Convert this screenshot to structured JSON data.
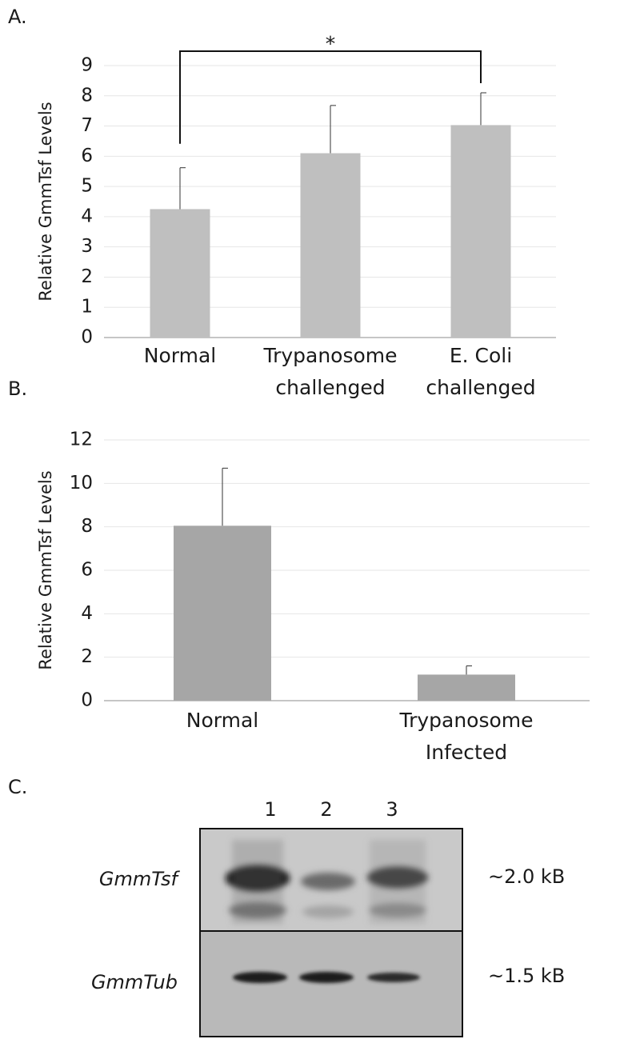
{
  "chart_data": [
    {
      "type": "bar",
      "panel_label": "A.",
      "ylabel": "Relative GmmTsf Levels",
      "categories": [
        "Normal",
        "Trypanosome challenged",
        "E. Coli challenged"
      ],
      "values": [
        4.25,
        6.1,
        7.03
      ],
      "errors": [
        1.37,
        1.58,
        1.07
      ],
      "color": "#bfbfbf",
      "ylim": [
        0,
        9
      ],
      "yticks": [
        0,
        1,
        2,
        3,
        4,
        5,
        6,
        7,
        8,
        9
      ],
      "grid": true,
      "annotation": "*"
    },
    {
      "type": "bar",
      "panel_label": "B.",
      "ylabel": "Relative GmmTsf Levels",
      "categories": [
        "Normal",
        "Trypanosome Infected"
      ],
      "values": [
        8.05,
        1.2
      ],
      "errors": [
        2.65,
        0.4
      ],
      "color": "#a6a6a6",
      "ylim": [
        0,
        12
      ],
      "yticks": [
        0,
        2,
        4,
        6,
        8,
        10,
        12
      ],
      "grid": true
    }
  ],
  "blot": {
    "panel_label": "C.",
    "lanes": [
      "1",
      "2",
      "3"
    ],
    "rows": [
      "GmmTsf",
      "GmmTub"
    ],
    "sizes": [
      "~2.0 kB",
      "~1.5 kB"
    ]
  }
}
